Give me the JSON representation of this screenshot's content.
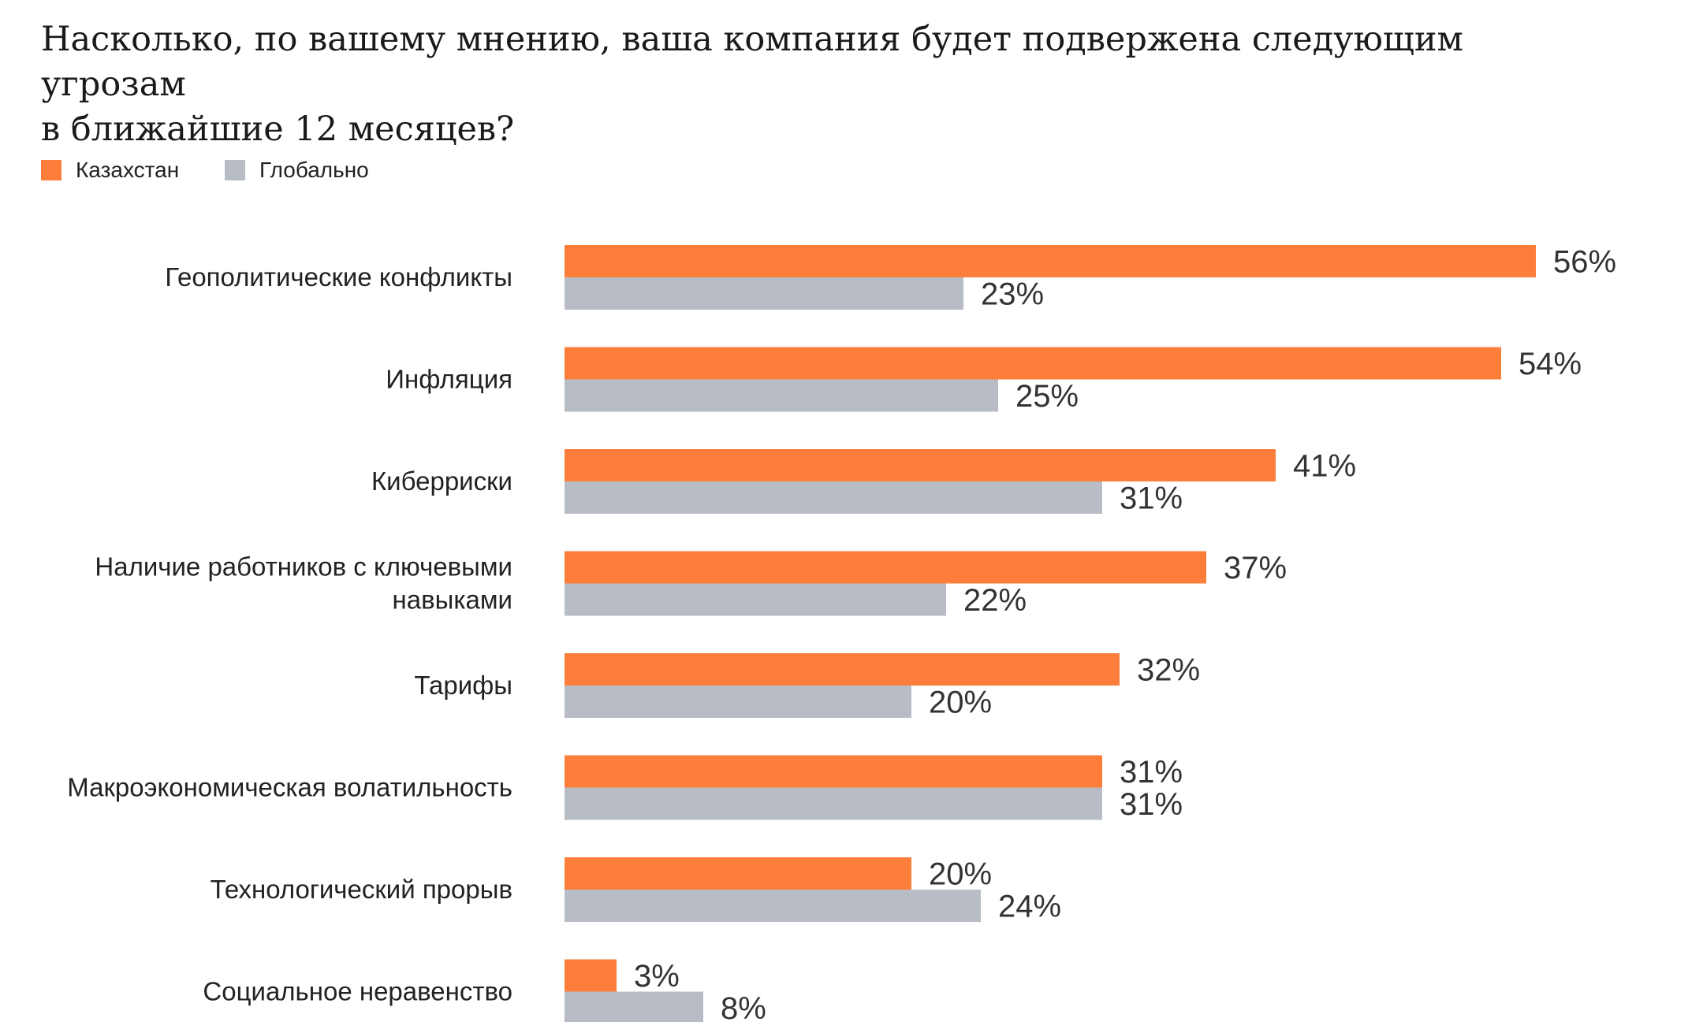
{
  "chart_data": {
    "type": "bar",
    "orientation": "horizontal",
    "title_lines": [
      "Насколько, по вашему мнению, ваша компания будет подвержена следующим угрозам",
      "в ближайшие 12 месяцев?"
    ],
    "categories": [
      [
        "Геополитические конфликты"
      ],
      [
        "Инфляция"
      ],
      [
        "Киберриски"
      ],
      [
        "Наличие работников с ключевыми",
        "навыками"
      ],
      [
        "Тарифы"
      ],
      [
        "Макроэкономическая волатильность"
      ],
      [
        "Технологический прорыв"
      ],
      [
        "Социальное неравенство"
      ]
    ],
    "series": [
      {
        "name": "Казахстан",
        "color": "#fd7e3a",
        "values": [
          56,
          54,
          41,
          37,
          32,
          31,
          20,
          3
        ],
        "labels": [
          "56%",
          "54%",
          "41%",
          "37%",
          "32%",
          "31%",
          "20%",
          "3%"
        ]
      },
      {
        "name": "Глобально",
        "color": "#b8bdc5",
        "values": [
          23,
          25,
          31,
          22,
          20,
          31,
          24,
          8
        ],
        "labels": [
          "23%",
          "25%",
          "31%",
          "22%",
          "20%",
          "31%",
          "24%",
          "8%"
        ]
      }
    ],
    "value_unit": "%",
    "legend_position": "top-left",
    "grid": false
  }
}
